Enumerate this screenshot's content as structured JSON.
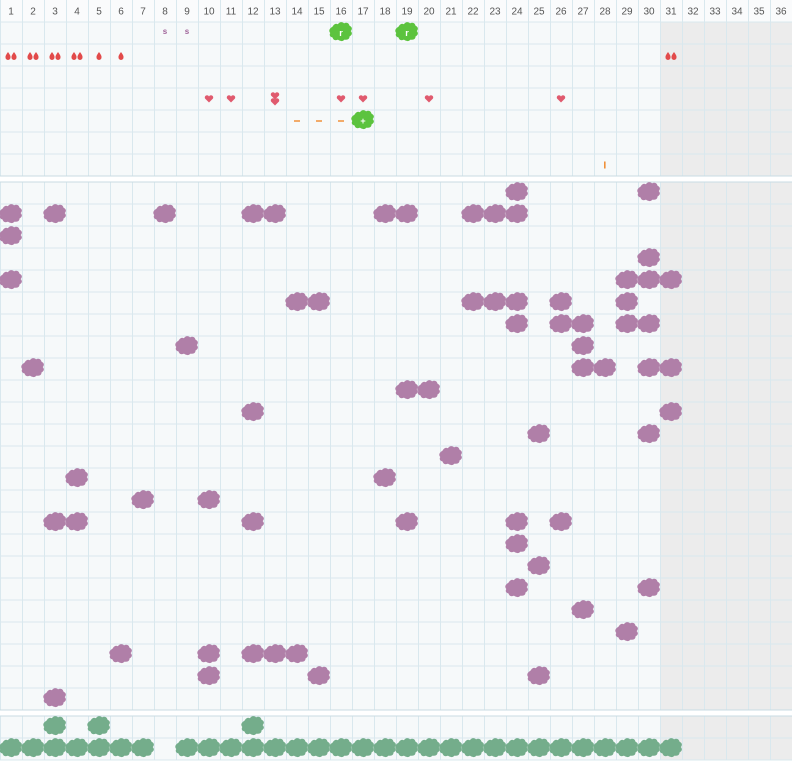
{
  "columns": [
    1,
    2,
    3,
    4,
    5,
    6,
    7,
    8,
    9,
    10,
    11,
    12,
    13,
    14,
    15,
    16,
    17,
    18,
    19,
    20,
    21,
    22,
    23,
    24,
    25,
    26,
    27,
    28,
    29,
    30,
    31,
    32,
    33,
    34,
    35,
    36
  ],
  "shaded_columns_from": 31,
  "top_rows": [
    [
      {
        "col": 8,
        "kind": "letter",
        "text": "s"
      },
      {
        "col": 9,
        "kind": "letter",
        "text": "s"
      },
      {
        "col": 16,
        "kind": "green",
        "text": "r"
      },
      {
        "col": 19,
        "kind": "green",
        "text": "r"
      }
    ],
    [
      {
        "col": 1,
        "kind": "drops",
        "count": 2
      },
      {
        "col": 2,
        "kind": "drops",
        "count": 2
      },
      {
        "col": 3,
        "kind": "drops",
        "count": 2
      },
      {
        "col": 4,
        "kind": "drops",
        "count": 2
      },
      {
        "col": 5,
        "kind": "drops",
        "count": 1
      },
      {
        "col": 6,
        "kind": "drops",
        "count": 1
      },
      {
        "col": 31,
        "kind": "drops",
        "count": 2
      }
    ],
    [],
    [
      {
        "col": 10,
        "kind": "hearts",
        "count": 1
      },
      {
        "col": 11,
        "kind": "hearts",
        "count": 1
      },
      {
        "col": 13,
        "kind": "hearts",
        "count": 2
      },
      {
        "col": 16,
        "kind": "hearts",
        "count": 1
      },
      {
        "col": 17,
        "kind": "hearts",
        "count": 1
      },
      {
        "col": 20,
        "kind": "hearts",
        "count": 1
      },
      {
        "col": 26,
        "kind": "hearts",
        "count": 1
      }
    ],
    [
      {
        "col": 14,
        "kind": "dash"
      },
      {
        "col": 15,
        "kind": "dash"
      },
      {
        "col": 16,
        "kind": "dash"
      },
      {
        "col": 17,
        "kind": "green",
        "text": "+"
      }
    ],
    [],
    [
      {
        "col": 28,
        "kind": "bar"
      }
    ]
  ],
  "middle_rows": [
    [
      24,
      30
    ],
    [
      1,
      3,
      8,
      12,
      13,
      18,
      19,
      22,
      23,
      24
    ],
    [
      1
    ],
    [
      30
    ],
    [
      1,
      29,
      30,
      31
    ],
    [
      14,
      15,
      22,
      23,
      24,
      26,
      29
    ],
    [
      24,
      26,
      27,
      29,
      30
    ],
    [
      9,
      27
    ],
    [
      2,
      27,
      28,
      30,
      31
    ],
    [
      19,
      20
    ],
    [
      12,
      31
    ],
    [
      25,
      30
    ],
    [
      21
    ],
    [
      4,
      18
    ],
    [
      7,
      10
    ],
    [
      3,
      4,
      12,
      19,
      24,
      26
    ],
    [
      24
    ],
    [
      25
    ],
    [
      24,
      30
    ],
    [
      27
    ],
    [
      29
    ],
    [
      6,
      10,
      12,
      13,
      14
    ],
    [
      10,
      15,
      25
    ],
    [
      3
    ]
  ],
  "bottom_rows": [
    [
      3,
      5,
      12
    ],
    [
      1,
      2,
      3,
      4,
      5,
      6,
      7,
      9,
      10,
      11,
      12,
      13,
      14,
      15,
      16,
      17,
      18,
      19,
      20,
      21,
      22,
      23,
      24,
      25,
      26,
      27,
      28,
      29,
      30,
      31
    ]
  ]
}
